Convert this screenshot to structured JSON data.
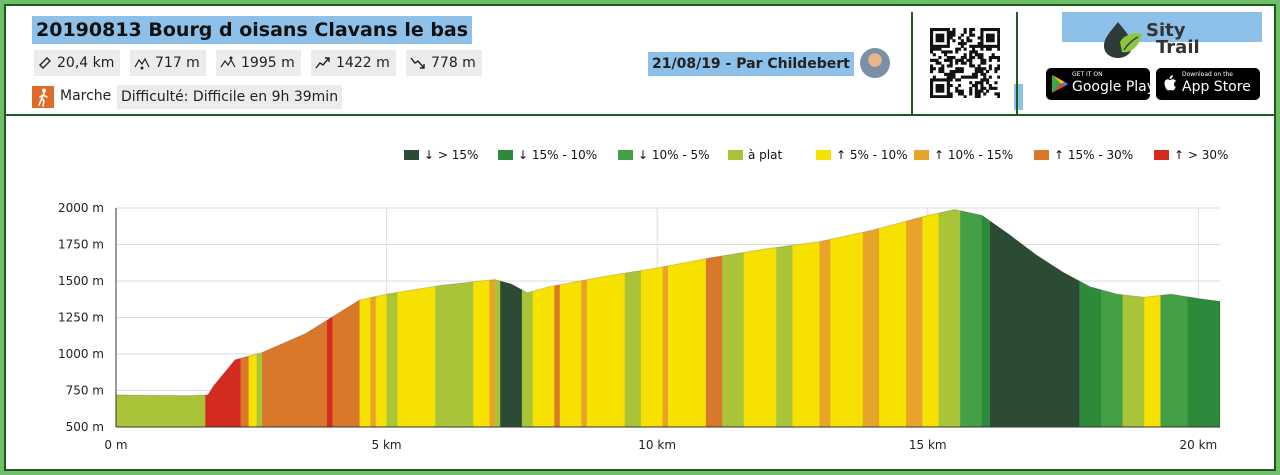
{
  "header": {
    "title": "20190813 Bourg d oisans Clavans le bas",
    "stats": {
      "distance": "20,4 km",
      "min_alt": "717 m",
      "max_alt": "1995 m",
      "ascent": "1422 m",
      "descent": "778 m"
    },
    "activity": "Marche",
    "difficulty": "Difficulté: Difficile en 9h 39min",
    "author": "21/08/19 - Par Childebert",
    "brand_line1": "Sity",
    "brand_line2": "Trail",
    "google_play_small": "GET IT ON",
    "google_play_big": "Google Play",
    "app_store_small": "Download on the",
    "app_store_big": "App Store"
  },
  "colors": {
    "header_highlight": "#8ec1ea",
    "frame_border": "#1d5c1d",
    "background_green": "#6fbf6a"
  },
  "chart_data": {
    "type": "area",
    "title": "",
    "xlabel": "",
    "ylabel": "",
    "x_unit": "km",
    "y_unit": "m",
    "xlim": [
      0,
      20.4
    ],
    "ylim": [
      500,
      2000
    ],
    "x_ticks": [
      "0 m",
      "5 km",
      "10 km",
      "15 km",
      "20 km"
    ],
    "x_tick_values": [
      0,
      5,
      10,
      15,
      20
    ],
    "y_ticks": [
      "500 m",
      "750 m",
      "1000 m",
      "1250 m",
      "1500 m",
      "1750 m",
      "2000 m"
    ],
    "y_tick_values": [
      500,
      750,
      1000,
      1250,
      1500,
      1750,
      2000
    ],
    "grid": true,
    "legend_position": "top-right",
    "legend": [
      {
        "label": "> 15%",
        "arrow": "down",
        "color": "#2d4a34"
      },
      {
        "label": "15% - 10%",
        "arrow": "down",
        "color": "#2c8a3a"
      },
      {
        "label": "10% - 5%",
        "arrow": "down",
        "color": "#43a047"
      },
      {
        "label": "à plat",
        "arrow": "",
        "color": "#aac43a"
      },
      {
        "label": "5% - 10%",
        "arrow": "up",
        "color": "#f6e100"
      },
      {
        "label": "10% - 15%",
        "arrow": "up",
        "color": "#e8a32a"
      },
      {
        "label": "15% - 30%",
        "arrow": "up",
        "color": "#d9782a"
      },
      {
        "label": "> 30%",
        "arrow": "up",
        "color": "#d22b1f"
      }
    ],
    "profile": {
      "x": [
        0,
        1.3,
        1.7,
        1.8,
        2.2,
        2.7,
        3.5,
        4.5,
        5.0,
        6.0,
        7.0,
        7.3,
        7.6,
        8.0,
        9.0,
        10.0,
        11.0,
        12.0,
        13.0,
        14.0,
        15.0,
        15.5,
        16.0,
        16.5,
        17.0,
        17.5,
        18.0,
        18.5,
        19.0,
        19.5,
        20.0,
        20.4
      ],
      "elevation": [
        720,
        715,
        720,
        780,
        960,
        1010,
        1140,
        1370,
        1410,
        1470,
        1510,
        1480,
        1420,
        1460,
        1530,
        1590,
        1660,
        1720,
        1770,
        1850,
        1950,
        1990,
        1950,
        1820,
        1680,
        1560,
        1460,
        1410,
        1390,
        1410,
        1380,
        1360
      ]
    },
    "segments": [
      {
        "from": 0,
        "to": 1.65,
        "slope": "à plat"
      },
      {
        "from": 1.65,
        "to": 2.3,
        "slope": "> 30%"
      },
      {
        "from": 2.3,
        "to": 2.45,
        "slope": "15% - 30%"
      },
      {
        "from": 2.45,
        "to": 2.6,
        "slope": "5% - 10%"
      },
      {
        "from": 2.6,
        "to": 2.7,
        "slope": "à plat"
      },
      {
        "from": 2.7,
        "to": 3.9,
        "slope": "15% - 30%"
      },
      {
        "from": 3.9,
        "to": 4.0,
        "slope": "> 30%"
      },
      {
        "from": 4.0,
        "to": 4.5,
        "slope": "15% - 30%"
      },
      {
        "from": 4.5,
        "to": 4.7,
        "slope": "5% - 10%"
      },
      {
        "from": 4.7,
        "to": 4.8,
        "slope": "10% - 15%"
      },
      {
        "from": 4.8,
        "to": 5.0,
        "slope": "5% - 10%"
      },
      {
        "from": 5.0,
        "to": 5.2,
        "slope": "à plat"
      },
      {
        "from": 5.2,
        "to": 5.9,
        "slope": "5% - 10%"
      },
      {
        "from": 5.9,
        "to": 6.6,
        "slope": "à plat"
      },
      {
        "from": 6.6,
        "to": 6.9,
        "slope": "5% - 10%"
      },
      {
        "from": 6.9,
        "to": 7.0,
        "slope": "10% - 15%"
      },
      {
        "from": 7.0,
        "to": 7.1,
        "slope": "à plat"
      },
      {
        "from": 7.1,
        "to": 7.5,
        "slope": "> 15%"
      },
      {
        "from": 7.5,
        "to": 7.7,
        "slope": "à plat"
      },
      {
        "from": 7.7,
        "to": 8.1,
        "slope": "5% - 10%"
      },
      {
        "from": 8.1,
        "to": 8.2,
        "slope": "15% - 30%"
      },
      {
        "from": 8.2,
        "to": 8.6,
        "slope": "5% - 10%"
      },
      {
        "from": 8.6,
        "to": 8.7,
        "slope": "10% - 15%"
      },
      {
        "from": 8.7,
        "to": 9.4,
        "slope": "5% - 10%"
      },
      {
        "from": 9.4,
        "to": 9.7,
        "slope": "à plat"
      },
      {
        "from": 9.7,
        "to": 10.1,
        "slope": "5% - 10%"
      },
      {
        "from": 10.1,
        "to": 10.2,
        "slope": "10% - 15%"
      },
      {
        "from": 10.2,
        "to": 10.9,
        "slope": "5% - 10%"
      },
      {
        "from": 10.9,
        "to": 11.2,
        "slope": "15% - 30%"
      },
      {
        "from": 11.2,
        "to": 11.6,
        "slope": "à plat"
      },
      {
        "from": 11.6,
        "to": 12.2,
        "slope": "5% - 10%"
      },
      {
        "from": 12.2,
        "to": 12.5,
        "slope": "à plat"
      },
      {
        "from": 12.5,
        "to": 13.0,
        "slope": "5% - 10%"
      },
      {
        "from": 13.0,
        "to": 13.2,
        "slope": "10% - 15%"
      },
      {
        "from": 13.2,
        "to": 13.8,
        "slope": "5% - 10%"
      },
      {
        "from": 13.8,
        "to": 14.1,
        "slope": "10% - 15%"
      },
      {
        "from": 14.1,
        "to": 14.6,
        "slope": "5% - 10%"
      },
      {
        "from": 14.6,
        "to": 14.9,
        "slope": "10% - 15%"
      },
      {
        "from": 14.9,
        "to": 15.2,
        "slope": "5% - 10%"
      },
      {
        "from": 15.2,
        "to": 15.6,
        "slope": "à plat"
      },
      {
        "from": 15.6,
        "to": 16.0,
        "slope": "10% - 5%"
      },
      {
        "from": 16.0,
        "to": 16.15,
        "slope": "15% - 10%"
      },
      {
        "from": 16.15,
        "to": 17.8,
        "slope": "> 15%"
      },
      {
        "from": 17.8,
        "to": 18.2,
        "slope": "15% - 10%"
      },
      {
        "from": 18.2,
        "to": 18.6,
        "slope": "10% - 5%"
      },
      {
        "from": 18.6,
        "to": 19.0,
        "slope": "à plat"
      },
      {
        "from": 19.0,
        "to": 19.3,
        "slope": "5% - 10%"
      },
      {
        "from": 19.3,
        "to": 19.8,
        "slope": "10% - 5%"
      },
      {
        "from": 19.8,
        "to": 20.4,
        "slope": "15% - 10%"
      }
    ]
  }
}
